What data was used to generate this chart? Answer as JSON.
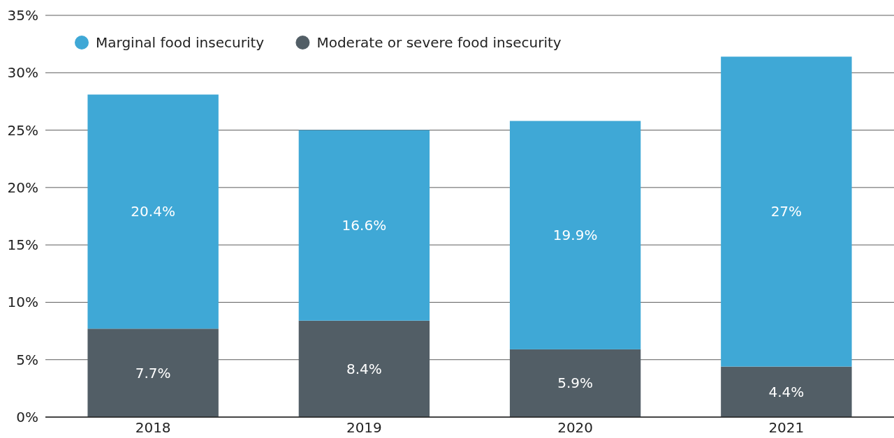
{
  "chart_data": {
    "type": "bar",
    "stacked": true,
    "categories": [
      "2018",
      "2019",
      "2020",
      "2021"
    ],
    "series": [
      {
        "name": "Moderate or severe food insecurity",
        "color": "#525e66",
        "values": [
          7.7,
          8.4,
          5.9,
          4.4
        ],
        "value_labels": [
          "7.7%",
          "8.4%",
          "5.9%",
          "4.4%"
        ]
      },
      {
        "name": "Marginal food insecurity",
        "color": "#3fa8d6",
        "values": [
          20.4,
          16.6,
          19.9,
          27
        ],
        "value_labels": [
          "20.4%",
          "16.6%",
          "19.9%",
          "27%"
        ]
      }
    ],
    "ylim": [
      0,
      35
    ],
    "yticks": [
      {
        "value": 0,
        "label": "0%"
      },
      {
        "value": 5,
        "label": "5%"
      },
      {
        "value": 10,
        "label": "10%"
      },
      {
        "value": 15,
        "label": "15%"
      },
      {
        "value": 20,
        "label": "20%"
      },
      {
        "value": 25,
        "label": "25%"
      },
      {
        "value": 30,
        "label": "30%"
      },
      {
        "value": 35,
        "label": "35%"
      }
    ],
    "grid": "y",
    "legend": "top left"
  }
}
